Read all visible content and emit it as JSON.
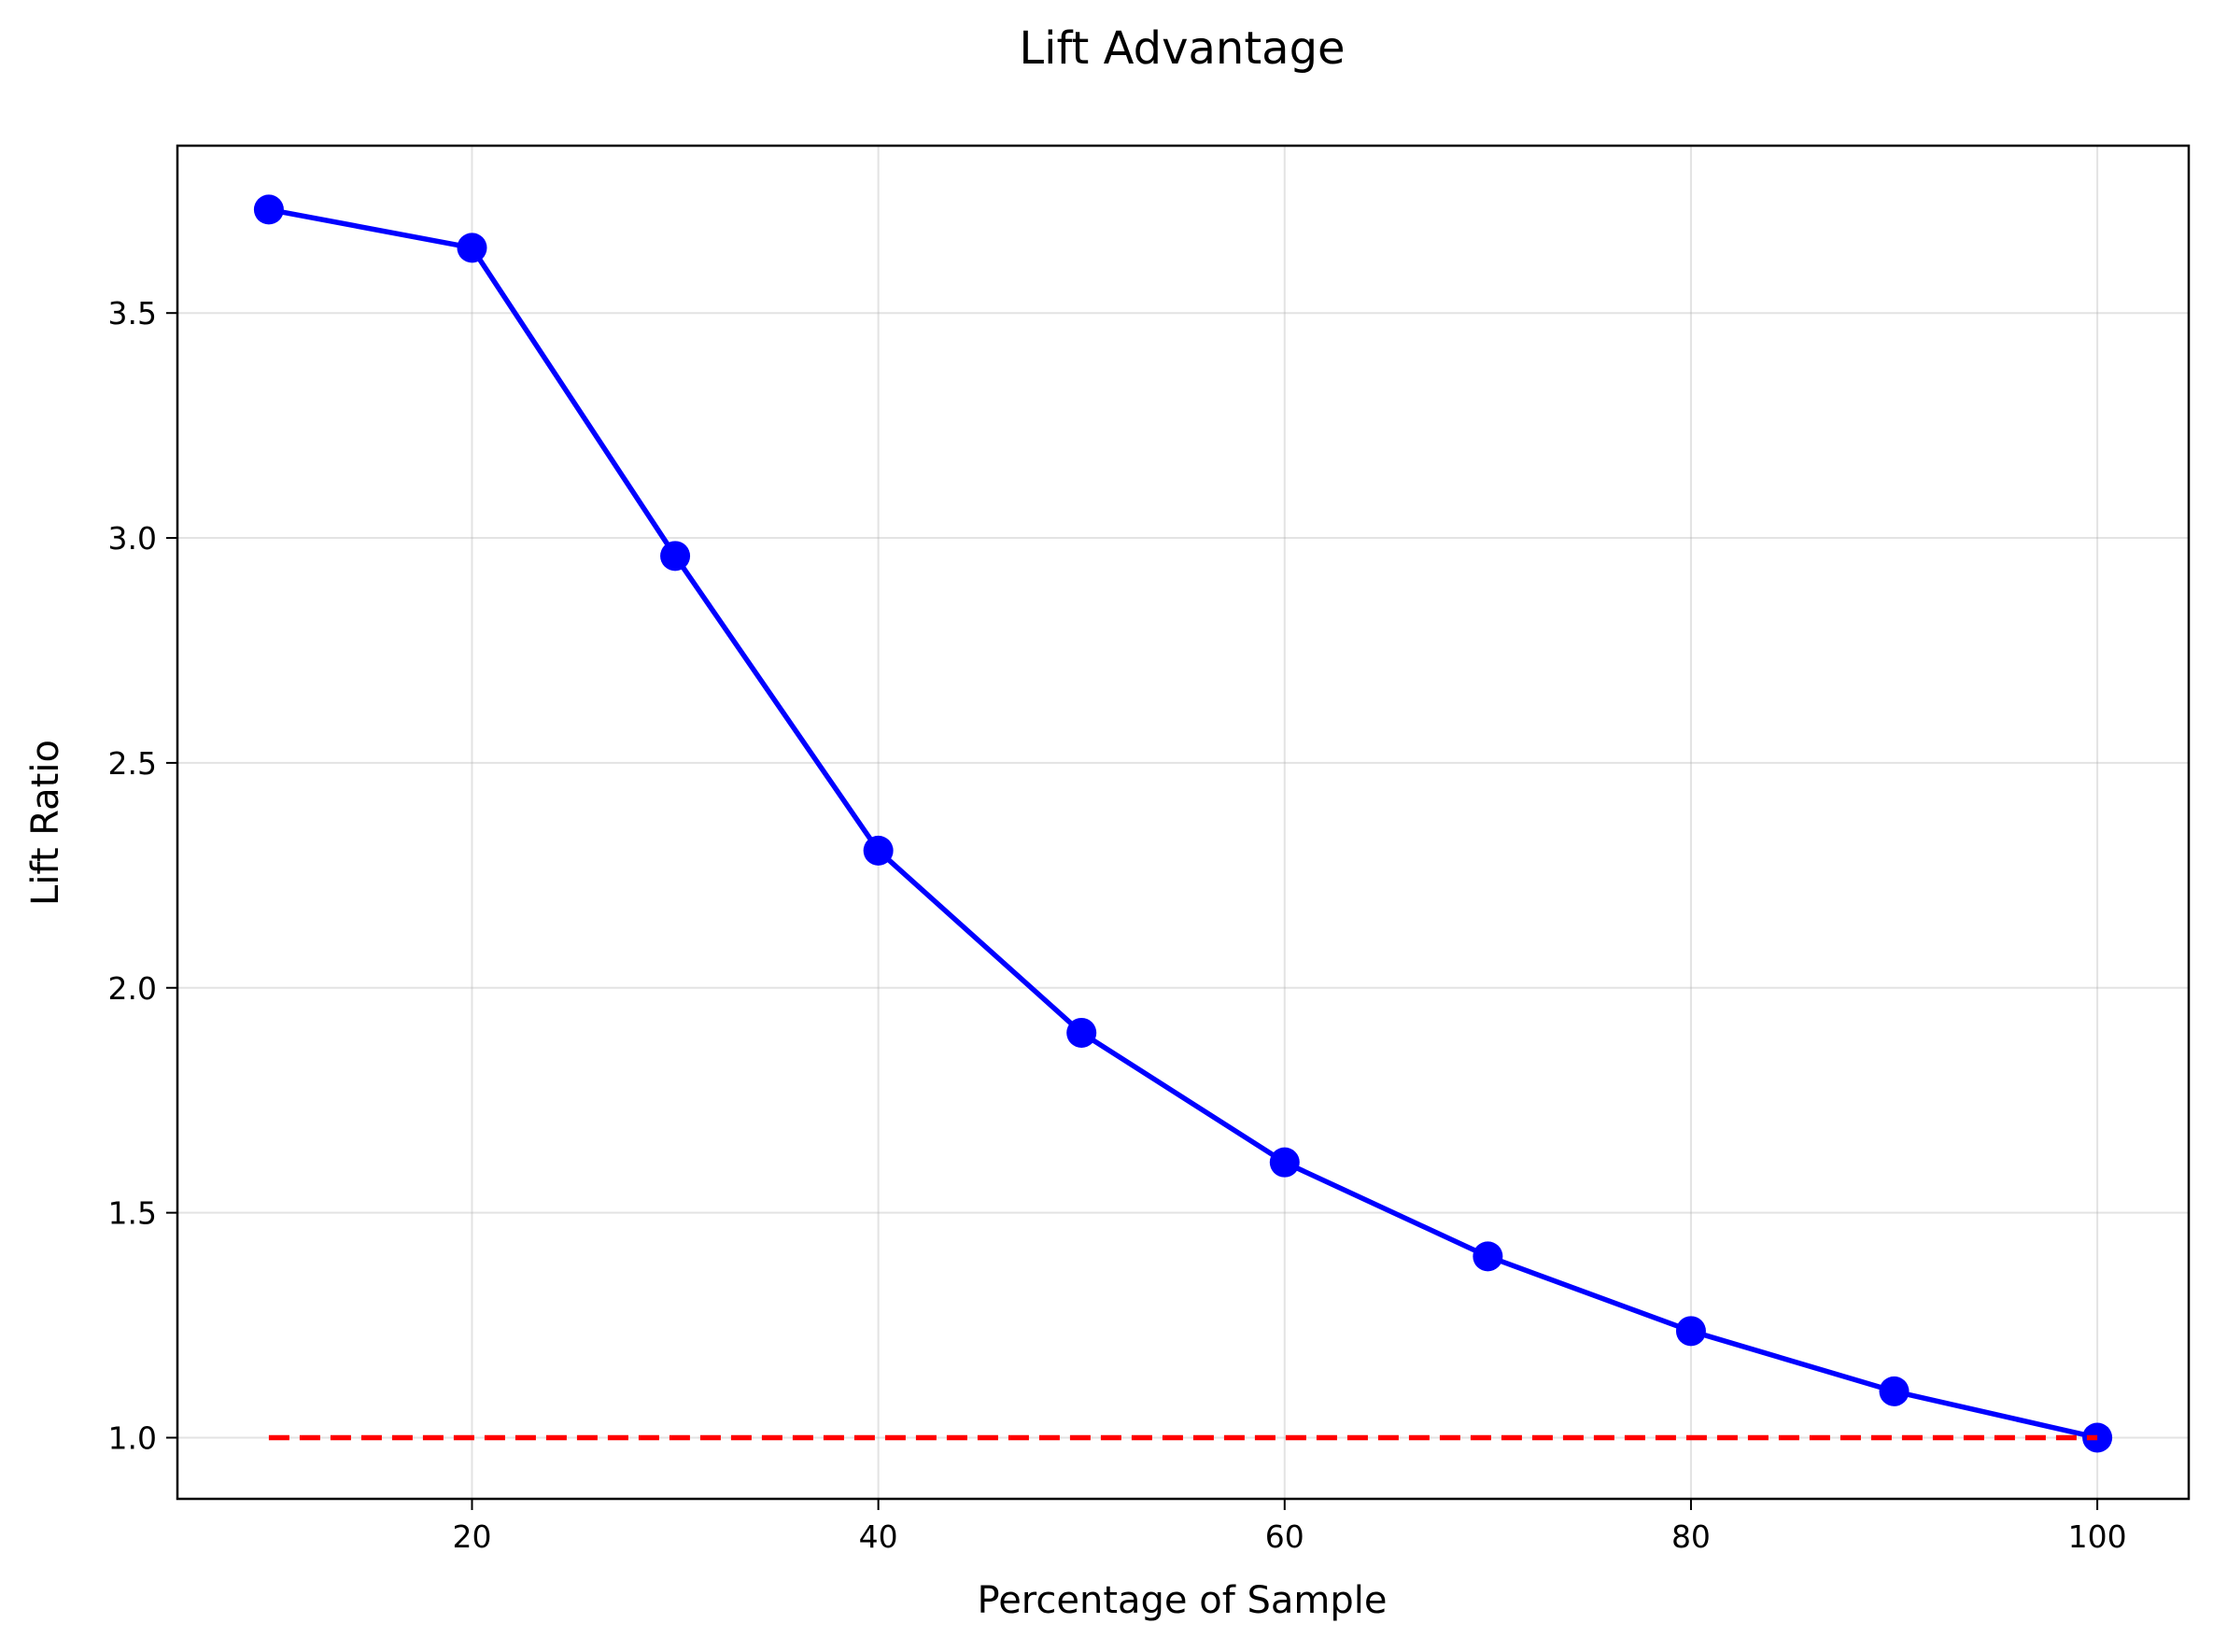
{
  "chart_data": {
    "type": "line",
    "title": "Lift Advantage",
    "xlabel": "Percentage of Sample",
    "ylabel": "Lift Ratio",
    "xlim": [
      5.5,
      104.5
    ],
    "ylim": [
      0.864,
      3.872
    ],
    "xticks": [
      20,
      40,
      60,
      80,
      100
    ],
    "yticks": [
      1.0,
      1.5,
      2.0,
      2.5,
      3.0,
      3.5
    ],
    "xtick_labels": [
      "20",
      "40",
      "60",
      "80",
      "100"
    ],
    "ytick_labels": [
      "1.0",
      "1.5",
      "2.0",
      "2.5",
      "3.0",
      "3.5"
    ],
    "grid": true,
    "legend": "none",
    "series": [
      {
        "style": "solid",
        "marker": "circle",
        "color": "#0000ff",
        "x": [
          10,
          20,
          30,
          40,
          50,
          60,
          70,
          80,
          90,
          100
        ],
        "y": [
          3.73,
          3.645,
          2.96,
          2.305,
          1.9,
          1.612,
          1.403,
          1.237,
          1.103,
          1.0
        ]
      },
      {
        "style": "dashed",
        "marker": "none",
        "color": "#ff0000",
        "x": [
          10,
          100
        ],
        "y": [
          1.0,
          1.0
        ]
      }
    ]
  }
}
